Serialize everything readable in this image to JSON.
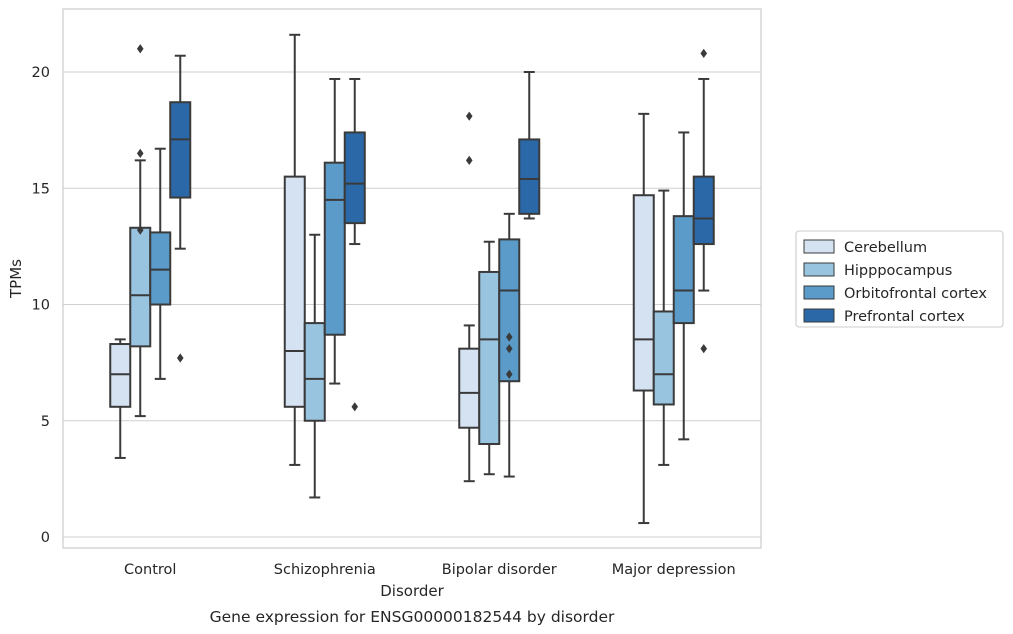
{
  "chart_data": {
    "type": "boxplot",
    "title": "Gene expression for ENSG00000182544 by disorder",
    "xlabel": "Disorder",
    "ylabel": "TPMs",
    "ylim": [
      -0.5,
      22.7
    ],
    "yticks": [
      0,
      5,
      10,
      15,
      20
    ],
    "grid": true,
    "legend_position": "right",
    "categories": [
      "Control",
      "Schizophrenia",
      "Bipolar disorder",
      "Major depression"
    ],
    "series": [
      {
        "name": "Cerebellum",
        "color": "#d4e2f1",
        "boxes": [
          {
            "whislo": 3.4,
            "q1": 5.6,
            "med": 7.0,
            "q3": 8.3,
            "whishi": 8.5,
            "fliers": []
          },
          {
            "whislo": 3.1,
            "q1": 5.6,
            "med": 8.0,
            "q3": 15.5,
            "whishi": 21.6,
            "fliers": []
          },
          {
            "whislo": 2.4,
            "q1": 4.7,
            "med": 6.2,
            "q3": 8.1,
            "whishi": 9.1,
            "fliers": [
              16.2,
              18.1
            ]
          },
          {
            "whislo": 0.6,
            "q1": 6.3,
            "med": 8.5,
            "q3": 14.7,
            "whishi": 18.2,
            "fliers": []
          }
        ]
      },
      {
        "name": "Hipppocampus",
        "color": "#99c4e0",
        "boxes": [
          {
            "whislo": 5.2,
            "q1": 8.2,
            "med": 10.4,
            "q3": 13.3,
            "whishi": 16.2,
            "fliers": [
              13.2,
              16.5,
              21.0
            ]
          },
          {
            "whislo": 1.7,
            "q1": 5.0,
            "med": 6.8,
            "q3": 9.2,
            "whishi": 13.0,
            "fliers": []
          },
          {
            "whislo": 2.7,
            "q1": 4.0,
            "med": 8.5,
            "q3": 11.4,
            "whishi": 12.7,
            "fliers": []
          },
          {
            "whislo": 3.1,
            "q1": 5.7,
            "med": 7.0,
            "q3": 9.7,
            "whishi": 14.9,
            "fliers": []
          }
        ]
      },
      {
        "name": "Orbitofrontal cortex",
        "color": "#5a9bc9",
        "boxes": [
          {
            "whislo": 6.8,
            "q1": 10.0,
            "med": 11.5,
            "q3": 13.1,
            "whishi": 16.7,
            "fliers": []
          },
          {
            "whislo": 6.6,
            "q1": 8.7,
            "med": 14.5,
            "q3": 16.1,
            "whishi": 19.7,
            "fliers": []
          },
          {
            "whislo": 2.6,
            "q1": 6.7,
            "med": 10.6,
            "q3": 12.8,
            "whishi": 13.9,
            "fliers": [
              7.0,
              8.1,
              8.6
            ]
          },
          {
            "whislo": 4.2,
            "q1": 9.2,
            "med": 10.6,
            "q3": 13.8,
            "whishi": 17.4,
            "fliers": []
          }
        ]
      },
      {
        "name": "Prefrontal cortex",
        "color": "#2a68a8",
        "boxes": [
          {
            "whislo": 12.4,
            "q1": 14.6,
            "med": 17.1,
            "q3": 18.7,
            "whishi": 20.7,
            "fliers": [
              7.7
            ]
          },
          {
            "whislo": 12.6,
            "q1": 13.5,
            "med": 15.2,
            "q3": 17.4,
            "whishi": 19.7,
            "fliers": [
              5.6
            ]
          },
          {
            "whislo": 13.7,
            "q1": 13.9,
            "med": 15.4,
            "q3": 17.1,
            "whishi": 20.0,
            "fliers": []
          },
          {
            "whislo": 10.6,
            "q1": 12.6,
            "med": 13.7,
            "q3": 15.5,
            "whishi": 19.7,
            "fliers": [
              8.1,
              20.8
            ]
          }
        ]
      }
    ]
  }
}
